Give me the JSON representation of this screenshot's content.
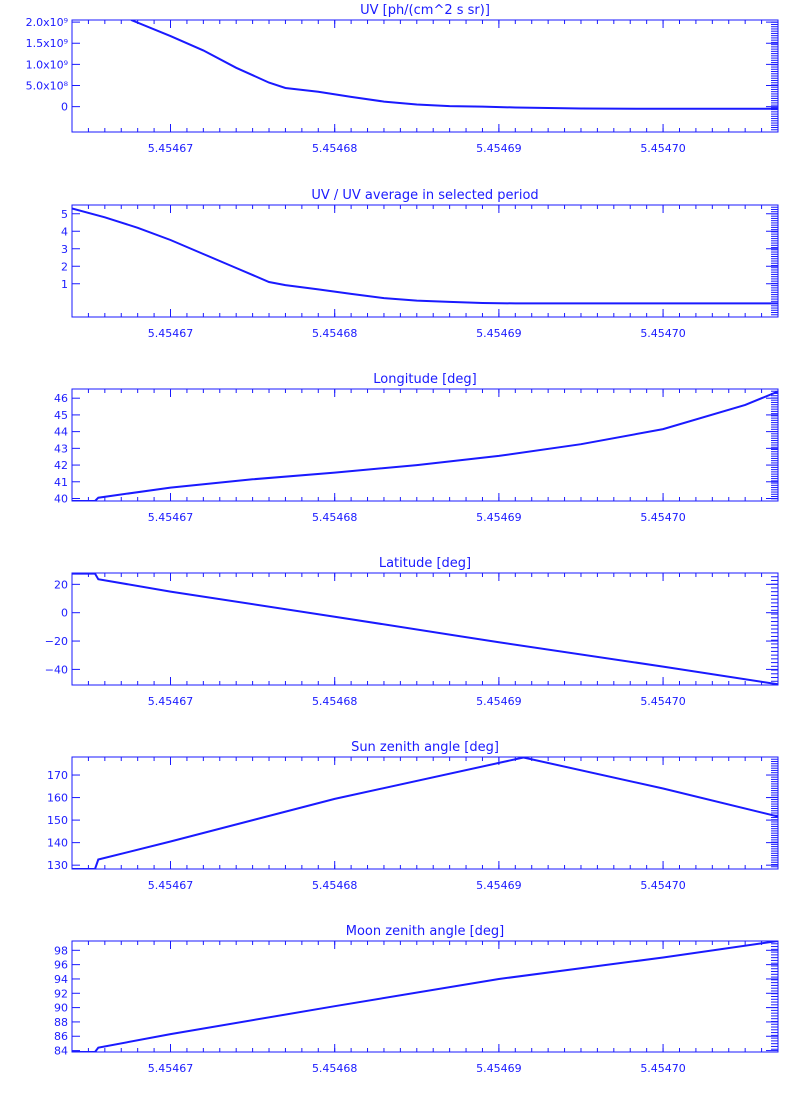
{
  "theme": {
    "accent": "#1a1aff",
    "background": "#ffffff"
  },
  "chart_data": [
    {
      "type": "line",
      "title": "UV [ph/(cm^2 s sr)]",
      "xlim": [
        5.454664,
        5.454707
      ],
      "ylim": [
        -600000000.0,
        2050000000.0
      ],
      "xticks": [
        {
          "v": 5.45467,
          "label": "5.45467"
        },
        {
          "v": 5.45468,
          "label": "5.45468"
        },
        {
          "v": 5.45469,
          "label": "5.45469"
        },
        {
          "v": 5.4547,
          "label": "5.45470"
        }
      ],
      "yticks": [
        {
          "v": 0,
          "label": "0"
        },
        {
          "v": 500000000.0,
          "label": "5.0x10⁸"
        },
        {
          "v": 1000000000.0,
          "label": "1.0x10⁹"
        },
        {
          "v": 1500000000.0,
          "label": "1.5x10⁹"
        },
        {
          "v": 2000000000.0,
          "label": "2.0x10⁹"
        }
      ],
      "yminor": 50,
      "series": [
        {
          "x": [
            5.4546676,
            5.45467,
            5.454672,
            5.454674,
            5.454676,
            5.454677,
            5.454679,
            5.454681,
            5.454683,
            5.454685,
            5.454687,
            5.454689,
            5.454691,
            5.454695,
            5.4547,
            5.454707
          ],
          "y": [
            2050000000.0,
            1670000000.0,
            1330000000.0,
            920000000.0,
            570000000.0,
            440000000.0,
            350000000.0,
            230000000.0,
            120000000.0,
            50000000.0,
            12000000.0,
            0,
            -20000000.0,
            -45000000.0,
            -50000000.0,
            -50000000.0
          ]
        }
      ]
    },
    {
      "type": "line",
      "title": "UV / UV average in selected period",
      "xlim": [
        5.454664,
        5.454707
      ],
      "ylim": [
        -0.9,
        5.5
      ],
      "xticks": [
        {
          "v": 5.45467,
          "label": "5.45467"
        },
        {
          "v": 5.45468,
          "label": "5.45468"
        },
        {
          "v": 5.45469,
          "label": "5.45469"
        },
        {
          "v": 5.4547,
          "label": "5.45470"
        }
      ],
      "yticks": [
        {
          "v": 1,
          "label": "1"
        },
        {
          "v": 2,
          "label": "2"
        },
        {
          "v": 3,
          "label": "3"
        },
        {
          "v": 4,
          "label": "4"
        },
        {
          "v": 5,
          "label": "5"
        }
      ],
      "yminor": 50,
      "series": [
        {
          "x": [
            5.454664,
            5.454666,
            5.454668,
            5.45467,
            5.454672,
            5.454674,
            5.454676,
            5.454677,
            5.454679,
            5.454681,
            5.454683,
            5.454685,
            5.454687,
            5.454689,
            5.454691,
            5.454695,
            5.4547,
            5.454707
          ],
          "y": [
            5.3,
            4.8,
            4.2,
            3.5,
            2.7,
            1.9,
            1.1,
            0.92,
            0.68,
            0.42,
            0.18,
            0.04,
            -0.04,
            -0.1,
            -0.12,
            -0.12,
            -0.12,
            -0.12
          ]
        }
      ]
    },
    {
      "type": "line",
      "title": "Longitude [deg]",
      "xlim": [
        5.454664,
        5.454707
      ],
      "ylim": [
        39.85,
        46.55
      ],
      "xticks": [
        {
          "v": 5.45467,
          "label": "5.45467"
        },
        {
          "v": 5.45468,
          "label": "5.45468"
        },
        {
          "v": 5.45469,
          "label": "5.45469"
        },
        {
          "v": 5.4547,
          "label": "5.45470"
        }
      ],
      "yticks": [
        {
          "v": 40,
          "label": "40"
        },
        {
          "v": 41,
          "label": "41"
        },
        {
          "v": 42,
          "label": "42"
        },
        {
          "v": 43,
          "label": "43"
        },
        {
          "v": 44,
          "label": "44"
        },
        {
          "v": 45,
          "label": "45"
        },
        {
          "v": 46,
          "label": "46"
        }
      ],
      "yminor": 50,
      "series": [
        {
          "x": [
            5.454664,
            5.4546654,
            5.4546656,
            5.45467,
            5.454675,
            5.45468,
            5.454685,
            5.45469,
            5.454695,
            5.4547,
            5.454705,
            5.454707
          ],
          "y": [
            39.85,
            39.85,
            40.05,
            40.65,
            41.15,
            41.55,
            42.0,
            42.55,
            43.25,
            44.15,
            45.6,
            46.4
          ]
        }
      ]
    },
    {
      "type": "line",
      "title": "Latitude [deg]",
      "xlim": [
        5.454664,
        5.454707
      ],
      "ylim": [
        -51,
        28
      ],
      "xticks": [
        {
          "v": 5.45467,
          "label": "5.45467"
        },
        {
          "v": 5.45468,
          "label": "5.45468"
        },
        {
          "v": 5.45469,
          "label": "5.45469"
        },
        {
          "v": 5.4547,
          "label": "5.45470"
        }
      ],
      "yticks": [
        {
          "v": -40,
          "label": "−40"
        },
        {
          "v": -20,
          "label": "−20"
        },
        {
          "v": 0,
          "label": "0"
        },
        {
          "v": 20,
          "label": "20"
        }
      ],
      "yminor": 30,
      "series": [
        {
          "x": [
            5.454664,
            5.4546654,
            5.4546656,
            5.45467,
            5.45468,
            5.45469,
            5.4547,
            5.454707
          ],
          "y": [
            27.6,
            27.6,
            23.6,
            14.9,
            -2.8,
            -20.9,
            -38.0,
            -50.5
          ]
        }
      ]
    },
    {
      "type": "line",
      "title": "Sun zenith angle [deg]",
      "xlim": [
        5.454664,
        5.454707
      ],
      "ylim": [
        128.3,
        178
      ],
      "xticks": [
        {
          "v": 5.45467,
          "label": "5.45467"
        },
        {
          "v": 5.45468,
          "label": "5.45468"
        },
        {
          "v": 5.45469,
          "label": "5.45469"
        },
        {
          "v": 5.4547,
          "label": "5.45470"
        }
      ],
      "yticks": [
        {
          "v": 130,
          "label": "130"
        },
        {
          "v": 140,
          "label": "140"
        },
        {
          "v": 150,
          "label": "150"
        },
        {
          "v": 160,
          "label": "160"
        },
        {
          "v": 170,
          "label": "170"
        }
      ],
      "yminor": 50,
      "series": [
        {
          "x": [
            5.454664,
            5.4546654,
            5.4546656,
            5.45467,
            5.45468,
            5.45469,
            5.4546915,
            5.4547,
            5.454707
          ],
          "y": [
            128.3,
            128.3,
            132.5,
            140.5,
            159.4,
            175.4,
            177.8,
            164.0,
            151.6
          ]
        }
      ]
    },
    {
      "type": "line",
      "title": "Moon zenith angle [deg]",
      "xlim": [
        5.454664,
        5.454707
      ],
      "ylim": [
        83.8,
        99.3
      ],
      "xticks": [
        {
          "v": 5.45467,
          "label": "5.45467"
        },
        {
          "v": 5.45468,
          "label": "5.45468"
        },
        {
          "v": 5.45469,
          "label": "5.45469"
        },
        {
          "v": 5.4547,
          "label": "5.45470"
        }
      ],
      "yticks": [
        {
          "v": 84,
          "label": "84"
        },
        {
          "v": 86,
          "label": "86"
        },
        {
          "v": 88,
          "label": "88"
        },
        {
          "v": 90,
          "label": "90"
        },
        {
          "v": 92,
          "label": "92"
        },
        {
          "v": 94,
          "label": "94"
        },
        {
          "v": 96,
          "label": "96"
        },
        {
          "v": 98,
          "label": "98"
        }
      ],
      "yminor": 40,
      "series": [
        {
          "x": [
            5.454664,
            5.4546654,
            5.4546656,
            5.45467,
            5.45468,
            5.45469,
            5.4547,
            5.454707
          ],
          "y": [
            83.8,
            83.8,
            84.4,
            86.3,
            90.2,
            94.0,
            97.0,
            99.3
          ]
        }
      ]
    }
  ]
}
